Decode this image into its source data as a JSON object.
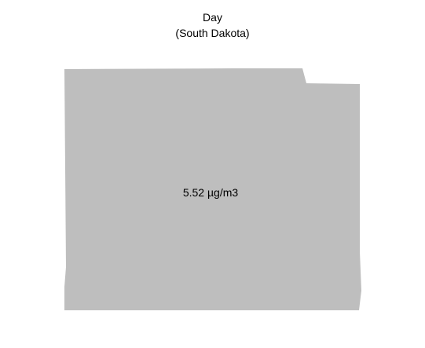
{
  "title": {
    "line1": "Day",
    "line2": "(South Dakota)"
  },
  "map": {
    "region": "South Dakota",
    "value_label": "5.52 µg/m3",
    "fill_color": "#bebebe"
  }
}
